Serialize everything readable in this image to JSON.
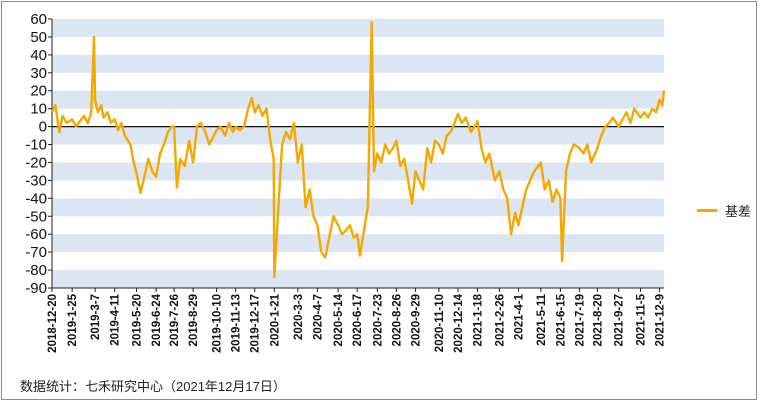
{
  "chart_data": {
    "type": "line",
    "ylim": [
      -90,
      60
    ],
    "ytick_step": 10,
    "x_tick_labels": [
      "2018-12-20",
      "2019-1-25",
      "2019-3-7",
      "2019-4-11",
      "2019-5-20",
      "2019-6-24",
      "2019-7-26",
      "2019-8-29",
      "2019-10-10",
      "2019-11-13",
      "2019-12-17",
      "2020-1-21",
      "2020-3-3",
      "2020-4-7",
      "2020-5-14",
      "2020-6-17",
      "2020-7-23",
      "2020-8-26",
      "2020-9-29",
      "2020-11-10",
      "2020-12-14",
      "2021-1-18",
      "2021-2-26",
      "2021-4-1",
      "2021-5-11",
      "2021-6-15",
      "2021-7-19",
      "2021-8-20",
      "2021-9-27",
      "2021-11-5",
      "2021-12-9"
    ],
    "grid": "alternating horizontal bands",
    "band_color": "#dce6f2",
    "line_color": "#f5a800",
    "legend_position": "right",
    "series": [
      {
        "name": "基差",
        "points": [
          [
            "2018-12-20",
            8
          ],
          [
            "2018-12-26",
            12
          ],
          [
            "2019-1-2",
            -3
          ],
          [
            "2019-1-8",
            6
          ],
          [
            "2019-1-15",
            2
          ],
          [
            "2019-1-25",
            4
          ],
          [
            "2019-2-1",
            0
          ],
          [
            "2019-2-15",
            6
          ],
          [
            "2019-2-22",
            2
          ],
          [
            "2019-2-28",
            8
          ],
          [
            "2019-3-5",
            50
          ],
          [
            "2019-3-7",
            15
          ],
          [
            "2019-3-12",
            8
          ],
          [
            "2019-3-18",
            12
          ],
          [
            "2019-3-22",
            5
          ],
          [
            "2019-3-29",
            8
          ],
          [
            "2019-4-4",
            2
          ],
          [
            "2019-4-11",
            4
          ],
          [
            "2019-4-17",
            -2
          ],
          [
            "2019-4-23",
            2
          ],
          [
            "2019-4-29",
            -5
          ],
          [
            "2019-5-9",
            -10
          ],
          [
            "2019-5-15",
            -20
          ],
          [
            "2019-5-20",
            -26
          ],
          [
            "2019-5-27",
            -37
          ],
          [
            "2019-6-3",
            -28
          ],
          [
            "2019-6-10",
            -18
          ],
          [
            "2019-6-17",
            -25
          ],
          [
            "2019-6-24",
            -28
          ],
          [
            "2019-7-1",
            -15
          ],
          [
            "2019-7-8",
            -10
          ],
          [
            "2019-7-15",
            -3
          ],
          [
            "2019-7-22",
            0
          ],
          [
            "2019-7-26",
            0
          ],
          [
            "2019-7-31",
            -34
          ],
          [
            "2019-8-6",
            -18
          ],
          [
            "2019-8-14",
            -22
          ],
          [
            "2019-8-22",
            -8
          ],
          [
            "2019-8-29",
            -20
          ],
          [
            "2019-9-5",
            0
          ],
          [
            "2019-9-12",
            2
          ],
          [
            "2019-9-20",
            -3
          ],
          [
            "2019-9-27",
            -10
          ],
          [
            "2019-10-10",
            -2
          ],
          [
            "2019-10-17",
            0
          ],
          [
            "2019-10-25",
            -5
          ],
          [
            "2019-11-1",
            2
          ],
          [
            "2019-11-8",
            -3
          ],
          [
            "2019-11-13",
            0
          ],
          [
            "2019-11-20",
            -2
          ],
          [
            "2019-11-28",
            0
          ],
          [
            "2019-12-5",
            10
          ],
          [
            "2019-12-12",
            16
          ],
          [
            "2019-12-17",
            8
          ],
          [
            "2019-12-24",
            12
          ],
          [
            "2019-12-31",
            6
          ],
          [
            "2020-1-7",
            10
          ],
          [
            "2020-1-14",
            -8
          ],
          [
            "2020-1-20",
            -18
          ],
          [
            "2020-1-21",
            -84
          ],
          [
            "2020-2-4",
            -10
          ],
          [
            "2020-2-11",
            -3
          ],
          [
            "2020-2-18",
            -7
          ],
          [
            "2020-2-25",
            2
          ],
          [
            "2020-3-3",
            -20
          ],
          [
            "2020-3-10",
            -10
          ],
          [
            "2020-3-17",
            -45
          ],
          [
            "2020-3-24",
            -35
          ],
          [
            "2020-3-31",
            -50
          ],
          [
            "2020-4-7",
            -55
          ],
          [
            "2020-4-14",
            -70
          ],
          [
            "2020-4-21",
            -73
          ],
          [
            "2020-4-28",
            -62
          ],
          [
            "2020-5-6",
            -50
          ],
          [
            "2020-5-14",
            -55
          ],
          [
            "2020-5-21",
            -60
          ],
          [
            "2020-5-28",
            -58
          ],
          [
            "2020-6-4",
            -55
          ],
          [
            "2020-6-11",
            -62
          ],
          [
            "2020-6-17",
            -60
          ],
          [
            "2020-6-22",
            -72
          ],
          [
            "2020-6-29",
            -58
          ],
          [
            "2020-7-6",
            -45
          ],
          [
            "2020-7-13",
            58
          ],
          [
            "2020-7-17",
            -25
          ],
          [
            "2020-7-23",
            -15
          ],
          [
            "2020-7-30",
            -20
          ],
          [
            "2020-8-6",
            -10
          ],
          [
            "2020-8-13",
            -15
          ],
          [
            "2020-8-20",
            -12
          ],
          [
            "2020-8-26",
            -8
          ],
          [
            "2020-9-2",
            -22
          ],
          [
            "2020-9-9",
            -18
          ],
          [
            "2020-9-16",
            -30
          ],
          [
            "2020-9-23",
            -43
          ],
          [
            "2020-9-29",
            -25
          ],
          [
            "2020-10-13",
            -35
          ],
          [
            "2020-10-20",
            -12
          ],
          [
            "2020-10-27",
            -20
          ],
          [
            "2020-11-3",
            -8
          ],
          [
            "2020-11-10",
            -10
          ],
          [
            "2020-11-17",
            -15
          ],
          [
            "2020-11-24",
            -5
          ],
          [
            "2020-12-1",
            -3
          ],
          [
            "2020-12-8",
            2
          ],
          [
            "2020-12-14",
            7
          ],
          [
            "2020-12-21",
            2
          ],
          [
            "2020-12-28",
            5
          ],
          [
            "2021-1-6",
            -3
          ],
          [
            "2021-1-13",
            0
          ],
          [
            "2021-1-18",
            3
          ],
          [
            "2021-1-25",
            -12
          ],
          [
            "2021-2-1",
            -20
          ],
          [
            "2021-2-8",
            -15
          ],
          [
            "2021-2-18",
            -30
          ],
          [
            "2021-2-26",
            -25
          ],
          [
            "2021-3-5",
            -35
          ],
          [
            "2021-3-12",
            -40
          ],
          [
            "2021-3-19",
            -60
          ],
          [
            "2021-3-26",
            -48
          ],
          [
            "2021-4-1",
            -55
          ],
          [
            "2021-4-8",
            -45
          ],
          [
            "2021-4-15",
            -35
          ],
          [
            "2021-4-22",
            -30
          ],
          [
            "2021-4-29",
            -25
          ],
          [
            "2021-5-11",
            -20
          ],
          [
            "2021-5-18",
            -35
          ],
          [
            "2021-5-25",
            -30
          ],
          [
            "2021-6-1",
            -42
          ],
          [
            "2021-6-8",
            -35
          ],
          [
            "2021-6-15",
            -40
          ],
          [
            "2021-6-18",
            -75
          ],
          [
            "2021-6-25",
            -25
          ],
          [
            "2021-7-2",
            -15
          ],
          [
            "2021-7-9",
            -10
          ],
          [
            "2021-7-19",
            -12
          ],
          [
            "2021-7-26",
            -15
          ],
          [
            "2021-8-2",
            -10
          ],
          [
            "2021-8-9",
            -20
          ],
          [
            "2021-8-20",
            -12
          ],
          [
            "2021-8-27",
            -5
          ],
          [
            "2021-9-3",
            0
          ],
          [
            "2021-9-10",
            2
          ],
          [
            "2021-9-17",
            5
          ],
          [
            "2021-9-27",
            0
          ],
          [
            "2021-10-11",
            8
          ],
          [
            "2021-10-18",
            2
          ],
          [
            "2021-10-25",
            10
          ],
          [
            "2021-11-5",
            5
          ],
          [
            "2021-11-12",
            8
          ],
          [
            "2021-11-19",
            5
          ],
          [
            "2021-11-26",
            10
          ],
          [
            "2021-12-3",
            8
          ],
          [
            "2021-12-9",
            15
          ],
          [
            "2021-12-14",
            12
          ],
          [
            "2021-12-17",
            20
          ]
        ]
      }
    ]
  },
  "source_note": "数据统计：七禾研究中心（2021年12月17日）"
}
